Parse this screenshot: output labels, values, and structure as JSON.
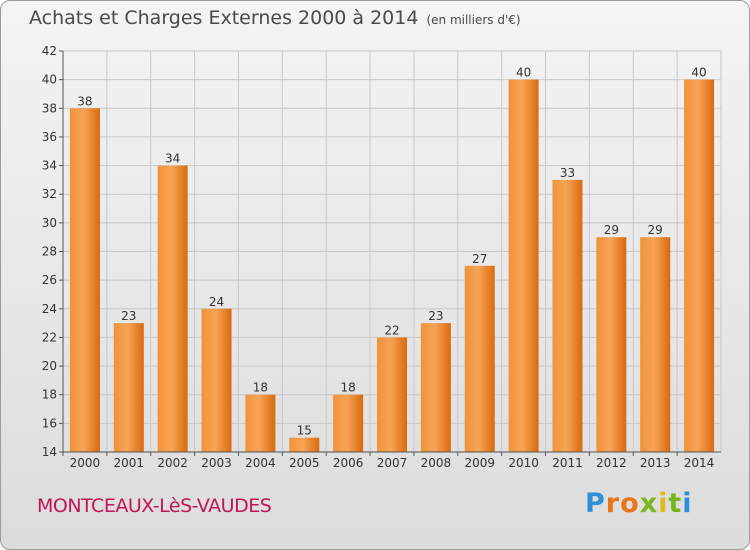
{
  "header": {
    "title": "Achats et Charges Externes 2000 à 2014",
    "unit": "(en milliers d'€)"
  },
  "footer": {
    "commune": "MONTCEAUX-LèS-VAUDES",
    "logo_letters": [
      "P",
      "r",
      "o",
      "x",
      "i",
      "t",
      "i"
    ],
    "logo_colors": [
      "#2f8fd8",
      "#e8741c",
      "#e8741c",
      "#7ab51d",
      "#e3b81a",
      "#7ab51d",
      "#2f8fd8"
    ]
  },
  "chart_data": {
    "type": "bar",
    "categories": [
      "2000",
      "2001",
      "2002",
      "2003",
      "2004",
      "2005",
      "2006",
      "2007",
      "2008",
      "2009",
      "2010",
      "2011",
      "2012",
      "2013",
      "2014"
    ],
    "values": [
      38,
      23,
      34,
      24,
      18,
      15,
      18,
      22,
      23,
      27,
      40,
      33,
      29,
      29,
      40
    ],
    "ylim": [
      14,
      42
    ],
    "yticks": [
      14,
      16,
      18,
      20,
      22,
      24,
      26,
      28,
      30,
      32,
      34,
      36,
      38,
      40,
      42
    ],
    "grid": true,
    "bar_color_top": "#f7a455",
    "bar_color_bottom": "#d96a10",
    "grid_color": "#c8c8c8"
  }
}
